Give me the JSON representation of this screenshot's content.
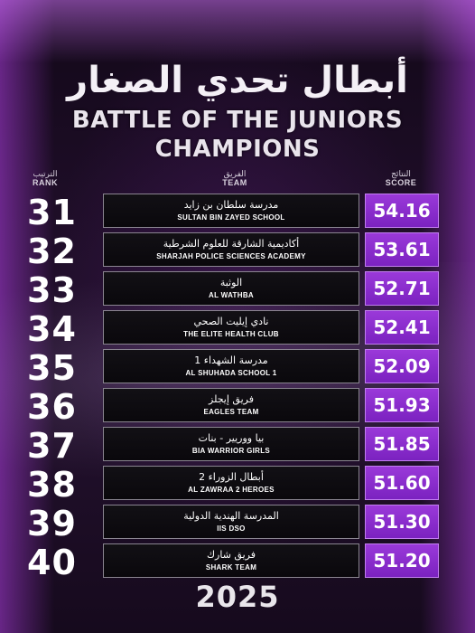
{
  "header": {
    "title_ar": "أبطال تحدي الصغار",
    "title_en_line1": "BATTLE OF THE JUNIORS",
    "title_en_line2": "CHAMPIONS"
  },
  "columns": {
    "rank_ar": "الترتيب",
    "rank_en": "RANK",
    "team_ar": "الفريق",
    "team_en": "TEAM",
    "score_ar": "النتائج",
    "score_en": "SCORE"
  },
  "rows": [
    {
      "rank": "31",
      "team_ar": "مدرسة سلطان بن زايد",
      "team_en": "SULTAN BIN ZAYED SCHOOL",
      "score": "54.16"
    },
    {
      "rank": "32",
      "team_ar": "أكاديمية الشارقة للعلوم الشرطية",
      "team_en": "SHARJAH POLICE SCIENCES ACADEMY",
      "score": "53.61"
    },
    {
      "rank": "33",
      "team_ar": "الوثبة",
      "team_en": "AL WATHBA",
      "score": "52.71"
    },
    {
      "rank": "34",
      "team_ar": "نادي إيليت الصحي",
      "team_en": "THE ELITE HEALTH CLUB",
      "score": "52.41"
    },
    {
      "rank": "35",
      "team_ar": "مدرسة الشهداء 1",
      "team_en": "AL SHUHADA SCHOOL 1",
      "score": "52.09"
    },
    {
      "rank": "36",
      "team_ar": "فريق إيجلز",
      "team_en": "EAGLES TEAM",
      "score": "51.93"
    },
    {
      "rank": "37",
      "team_ar": "بيا ووريير - بنات",
      "team_en": "BIA WARRIOR GIRLS",
      "score": "51.85"
    },
    {
      "rank": "38",
      "team_ar": "أبطال الزوراء 2",
      "team_en": "AL ZAWRAA 2 HEROES",
      "score": "51.60"
    },
    {
      "rank": "39",
      "team_ar": "المدرسة الهندية الدولية",
      "team_en": "IIS DSO",
      "score": "51.30"
    },
    {
      "rank": "40",
      "team_ar": "فريق شارك",
      "team_en": "SHARK TEAM",
      "score": "51.20"
    }
  ],
  "footer": {
    "year": "2025"
  },
  "colors": {
    "score_bg": "#8a2fcc",
    "team_bg": "#0e0c10",
    "accent_glow": "#b04fe6"
  }
}
